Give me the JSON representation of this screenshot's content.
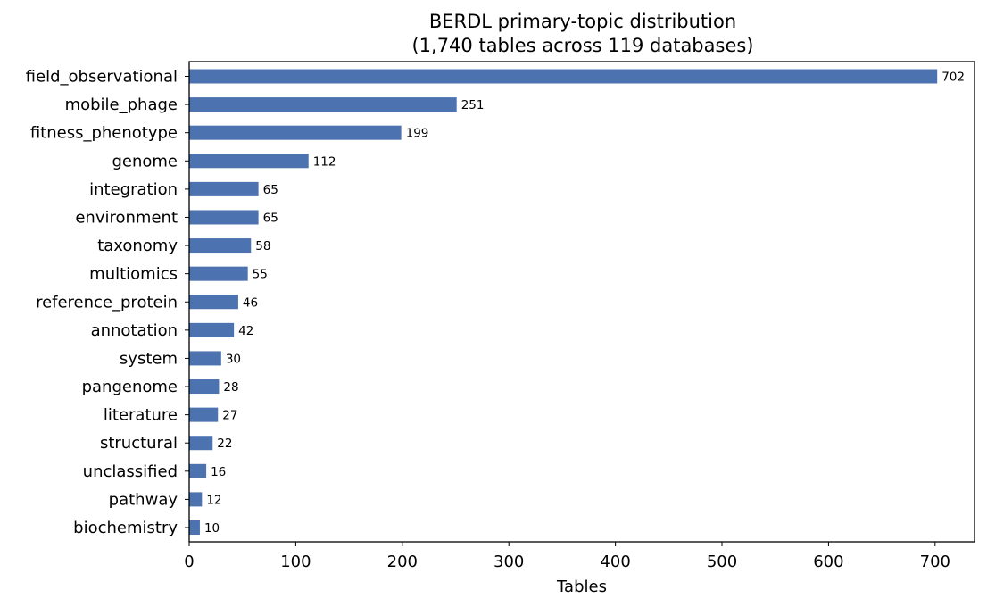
{
  "chart_data": {
    "type": "bar",
    "orientation": "horizontal",
    "title": "BERDL primary-topic distribution",
    "subtitle": "(1,740 tables across 119 databases)",
    "xlabel": "Tables",
    "ylabel": "",
    "xlim": [
      0,
      737
    ],
    "xticks": [
      0,
      100,
      200,
      300,
      400,
      500,
      600,
      700
    ],
    "grid": false,
    "legend": "none",
    "bar_color": "#4c72b0",
    "categories": [
      "field_observational",
      "mobile_phage",
      "fitness_phenotype",
      "genome",
      "integration",
      "environment",
      "taxonomy",
      "multiomics",
      "reference_protein",
      "annotation",
      "system",
      "pangenome",
      "literature",
      "structural",
      "unclassified",
      "pathway",
      "biochemistry"
    ],
    "values": [
      702,
      251,
      199,
      112,
      65,
      65,
      58,
      55,
      46,
      42,
      30,
      28,
      27,
      22,
      16,
      12,
      10
    ]
  }
}
